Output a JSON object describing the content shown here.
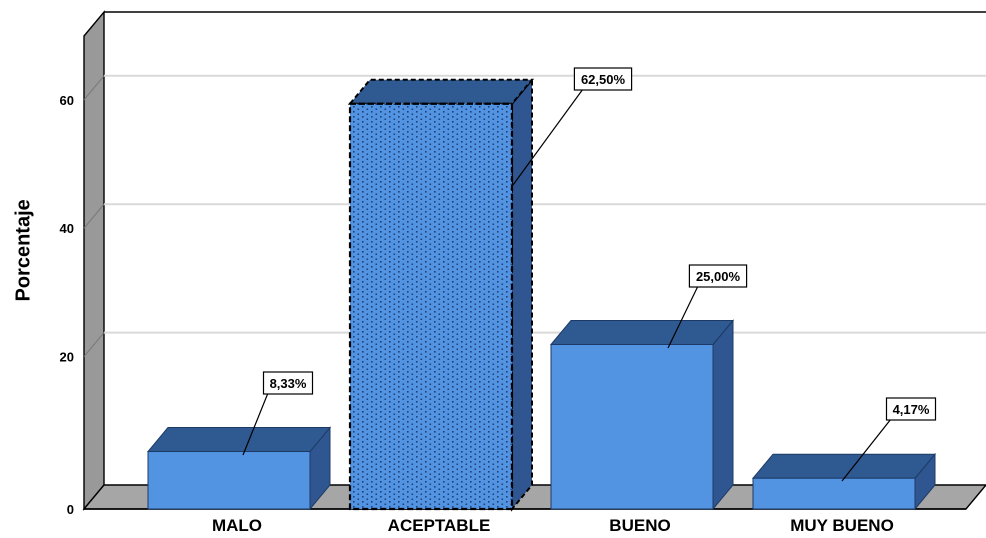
{
  "chart_data": {
    "type": "bar",
    "title": "",
    "xlabel": "",
    "ylabel": "Porcentaje",
    "categories": [
      "MALO",
      "ACEPTABLE",
      "BUENO",
      "MUY BUENO"
    ],
    "values": [
      8.33,
      62.5,
      25.0,
      4.17
    ],
    "data_labels": [
      "8,33%",
      "62,50%",
      "25,00%",
      "4,17%"
    ],
    "yticks": [
      "0",
      "20",
      "40",
      "60"
    ],
    "ytick_values": [
      0,
      20,
      40,
      60
    ],
    "ylim": [
      0,
      75
    ],
    "grid": true,
    "highlighted_category": "ACEPTABLE",
    "colors": {
      "bar_front": "#5294e2",
      "bar_top": "#2f5a91",
      "bar_side": "#2f5690",
      "floor": "#a6a6a6",
      "wall": "#999999",
      "gridline": "#d9d9d9"
    }
  }
}
